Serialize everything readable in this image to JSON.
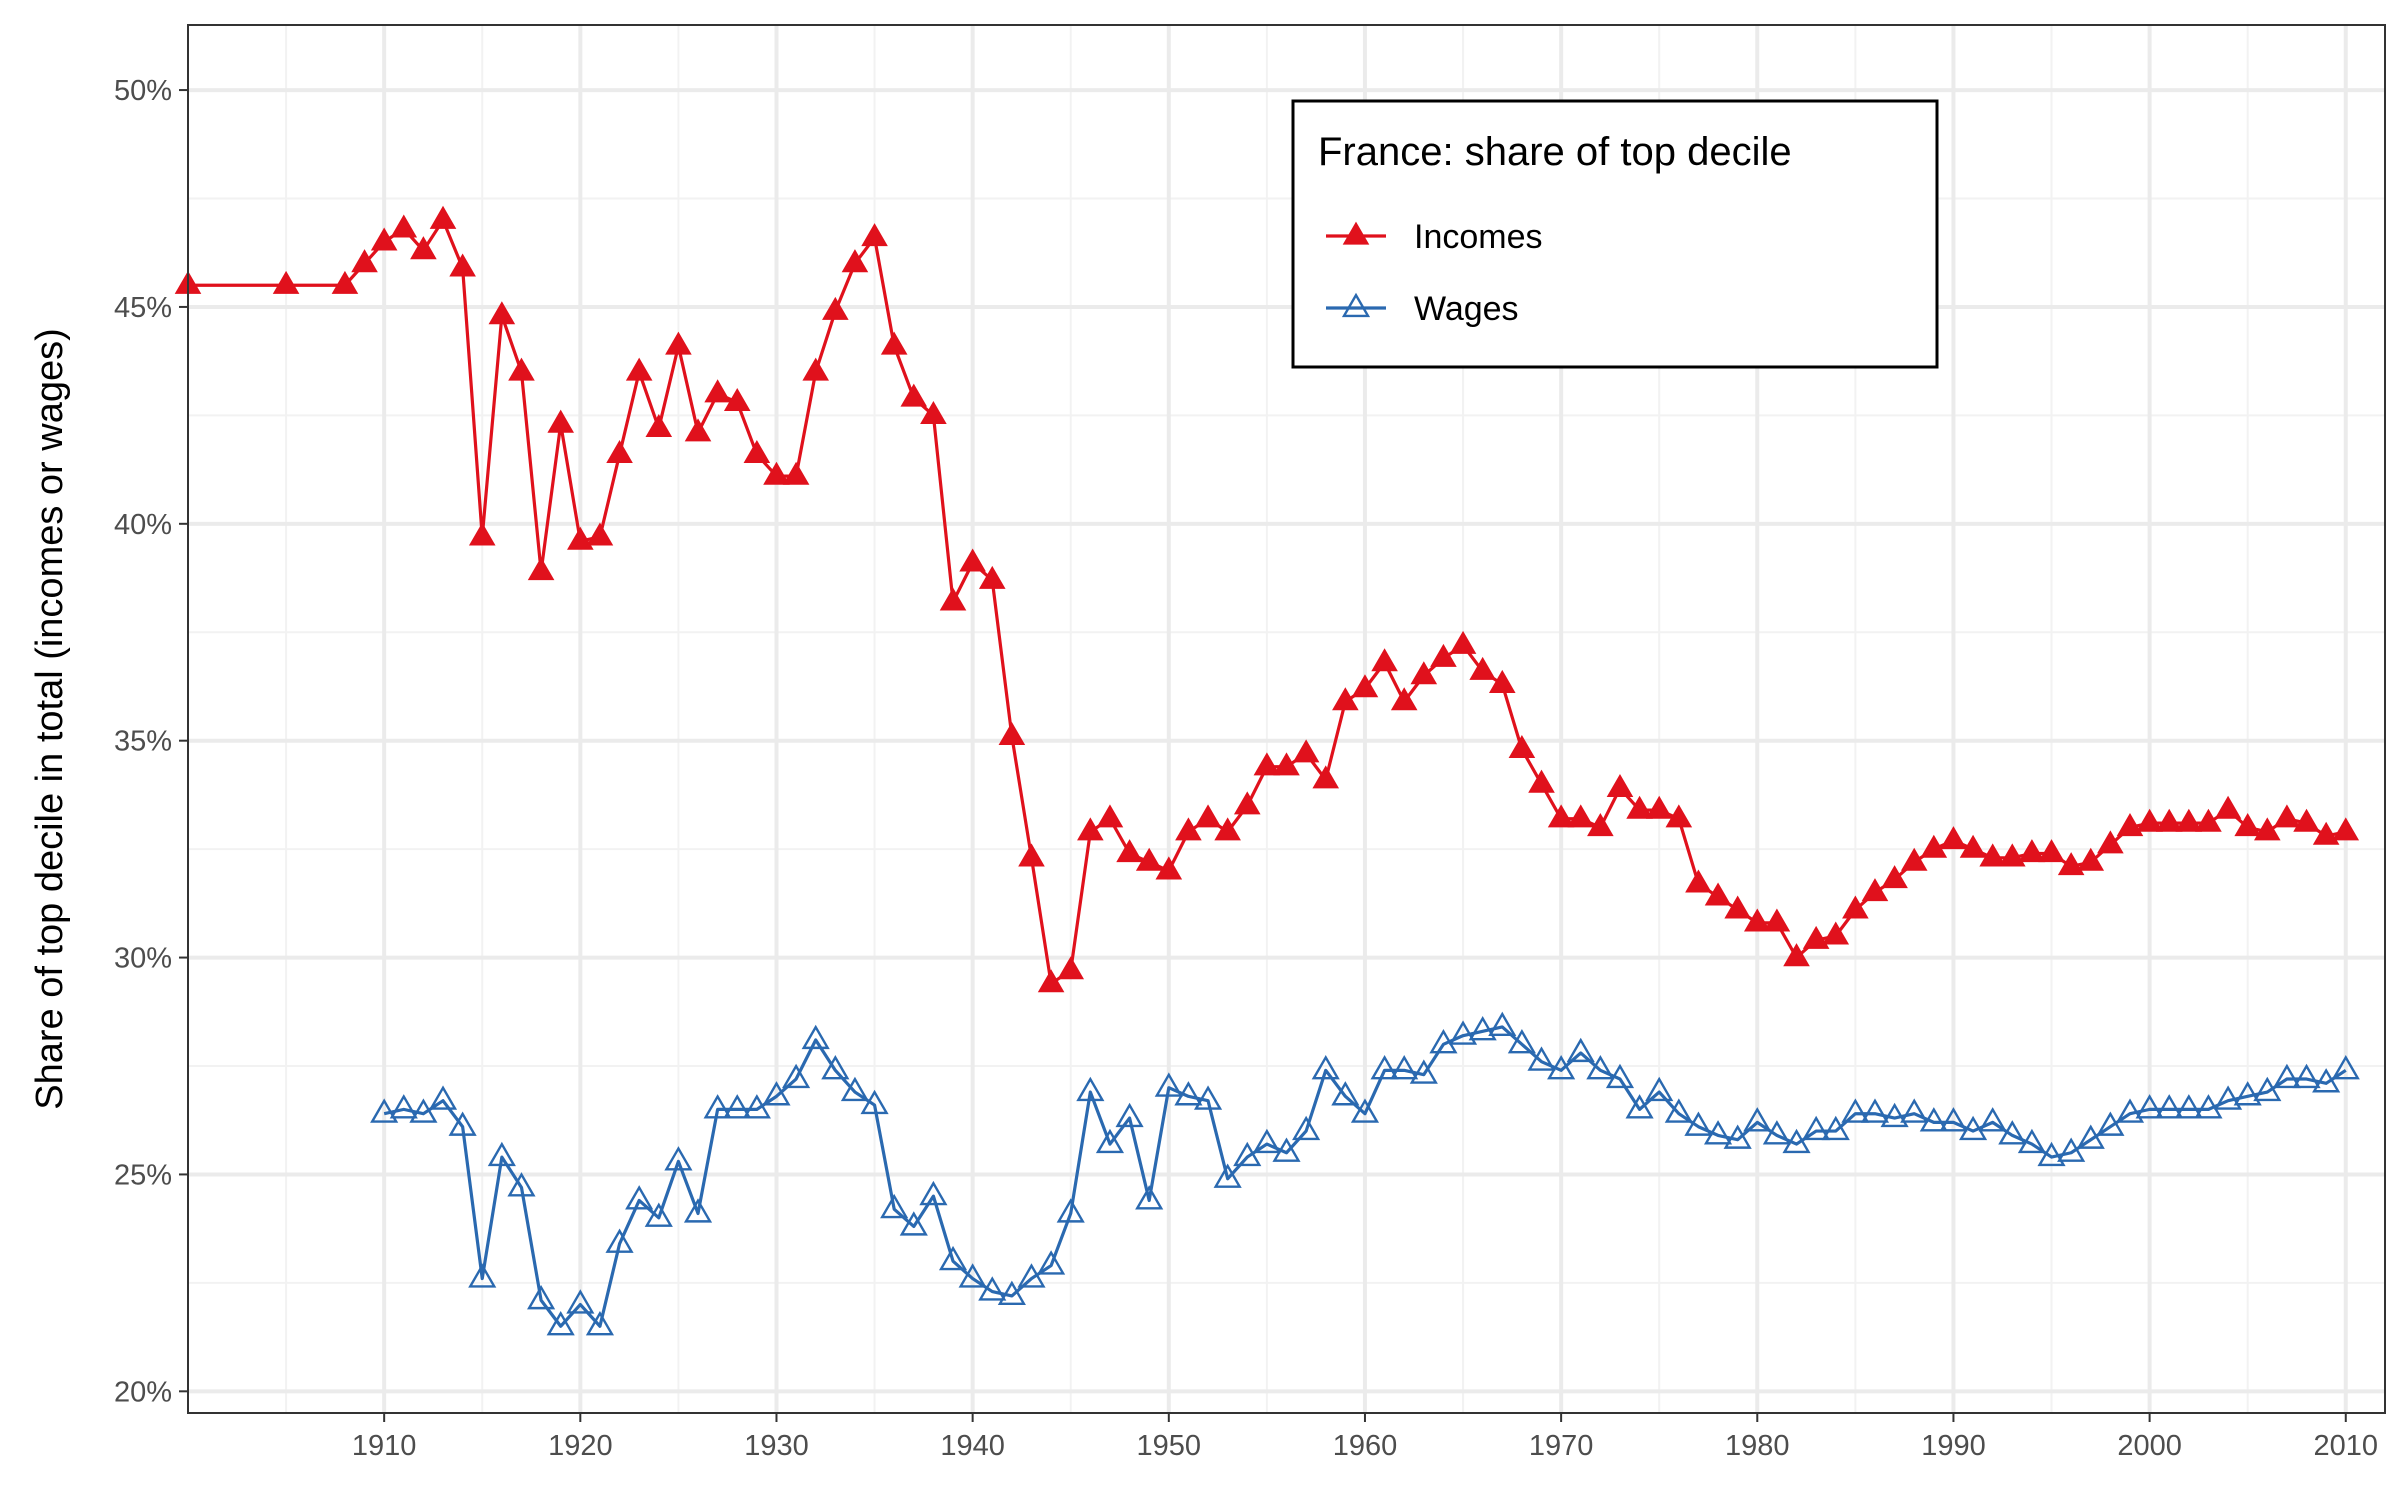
{
  "chart_data": {
    "type": "line",
    "ylabel": "Share of top decile in total (incomes or wages)",
    "xlim": [
      1900,
      2012
    ],
    "ylim": [
      0.195,
      0.515
    ],
    "x_ticks": [
      1910,
      1920,
      1930,
      1940,
      1950,
      1960,
      1970,
      1980,
      1990,
      2000,
      2010
    ],
    "y_ticks": [
      0.2,
      0.25,
      0.3,
      0.35,
      0.4,
      0.45,
      0.5
    ],
    "y_tick_labels": [
      "20%",
      "25%",
      "30%",
      "35%",
      "40%",
      "45%",
      "50%"
    ],
    "grid": true,
    "legend": {
      "title": "France: share of top decile",
      "position": "top-right"
    },
    "series": [
      {
        "name": "Incomes",
        "color": "#e0111c",
        "marker": "filled-triangle",
        "x": [
          1900,
          1905,
          1908,
          1909,
          1910,
          1911,
          1912,
          1913,
          1914,
          1915,
          1916,
          1917,
          1918,
          1919,
          1920,
          1921,
          1922,
          1923,
          1924,
          1925,
          1926,
          1927,
          1928,
          1929,
          1930,
          1931,
          1932,
          1933,
          1934,
          1935,
          1936,
          1937,
          1938,
          1939,
          1940,
          1941,
          1942,
          1943,
          1944,
          1945,
          1946,
          1947,
          1948,
          1949,
          1950,
          1951,
          1952,
          1953,
          1954,
          1955,
          1956,
          1957,
          1958,
          1959,
          1960,
          1961,
          1962,
          1963,
          1964,
          1965,
          1966,
          1967,
          1968,
          1969,
          1970,
          1971,
          1972,
          1973,
          1974,
          1975,
          1976,
          1977,
          1978,
          1979,
          1980,
          1981,
          1982,
          1983,
          1984,
          1985,
          1986,
          1987,
          1988,
          1989,
          1990,
          1991,
          1992,
          1993,
          1994,
          1995,
          1996,
          1997,
          1998,
          1999,
          2000,
          2001,
          2002,
          2003,
          2004,
          2005,
          2006,
          2007,
          2008,
          2009,
          2010
        ],
        "y": [
          0.455,
          0.455,
          0.455,
          0.46,
          0.465,
          0.468,
          0.463,
          0.47,
          0.459,
          0.397,
          0.448,
          0.435,
          0.389,
          0.423,
          0.396,
          0.397,
          0.416,
          0.435,
          0.422,
          0.441,
          0.421,
          0.43,
          0.428,
          0.416,
          0.411,
          0.411,
          0.435,
          0.449,
          0.46,
          0.466,
          0.441,
          0.429,
          0.425,
          0.382,
          0.391,
          0.387,
          0.351,
          0.323,
          0.294,
          0.297,
          0.329,
          0.332,
          0.324,
          0.322,
          0.32,
          0.329,
          0.332,
          0.329,
          0.335,
          0.344,
          0.344,
          0.347,
          0.341,
          0.359,
          0.362,
          0.368,
          0.359,
          0.365,
          0.369,
          0.372,
          0.366,
          0.363,
          0.348,
          0.34,
          0.332,
          0.332,
          0.33,
          0.339,
          0.334,
          0.334,
          0.332,
          0.317,
          0.314,
          0.311,
          0.308,
          0.308,
          0.3,
          0.304,
          0.305,
          0.311,
          0.315,
          0.318,
          0.322,
          0.325,
          0.327,
          0.325,
          0.323,
          0.323,
          0.324,
          0.324,
          0.321,
          0.322,
          0.326,
          0.33,
          0.331,
          0.331,
          0.331,
          0.331,
          0.334,
          0.33,
          0.329,
          0.332,
          0.331,
          0.328,
          0.329
        ]
      },
      {
        "name": "Wages",
        "color": "#2a69b0",
        "marker": "open-triangle",
        "x": [
          1910,
          1911,
          1912,
          1913,
          1914,
          1915,
          1916,
          1917,
          1918,
          1919,
          1920,
          1921,
          1922,
          1923,
          1924,
          1925,
          1926,
          1927,
          1928,
          1929,
          1930,
          1931,
          1932,
          1933,
          1934,
          1935,
          1936,
          1937,
          1938,
          1939,
          1940,
          1941,
          1942,
          1943,
          1944,
          1945,
          1946,
          1947,
          1948,
          1949,
          1950,
          1951,
          1952,
          1953,
          1954,
          1955,
          1956,
          1957,
          1958,
          1959,
          1960,
          1961,
          1962,
          1963,
          1964,
          1965,
          1966,
          1967,
          1968,
          1969,
          1970,
          1971,
          1972,
          1973,
          1974,
          1975,
          1976,
          1977,
          1978,
          1979,
          1980,
          1981,
          1982,
          1983,
          1984,
          1985,
          1986,
          1987,
          1988,
          1989,
          1990,
          1991,
          1992,
          1993,
          1994,
          1995,
          1996,
          1997,
          1998,
          1999,
          2000,
          2001,
          2002,
          2003,
          2004,
          2005,
          2006,
          2007,
          2008,
          2009,
          2010
        ],
        "y": [
          0.264,
          0.265,
          0.264,
          0.267,
          0.261,
          0.226,
          0.254,
          0.247,
          0.221,
          0.215,
          0.22,
          0.215,
          0.234,
          0.244,
          0.24,
          0.253,
          0.241,
          0.265,
          0.265,
          0.265,
          0.268,
          0.272,
          0.281,
          0.274,
          0.269,
          0.266,
          0.242,
          0.238,
          0.245,
          0.23,
          0.226,
          0.223,
          0.222,
          0.226,
          0.229,
          0.241,
          0.269,
          0.257,
          0.263,
          0.244,
          0.27,
          0.268,
          0.267,
          0.249,
          0.254,
          0.257,
          0.255,
          0.26,
          0.274,
          0.268,
          0.264,
          0.274,
          0.274,
          0.273,
          0.28,
          0.282,
          0.283,
          0.284,
          0.28,
          0.276,
          0.274,
          0.278,
          0.274,
          0.272,
          0.265,
          0.269,
          0.264,
          0.261,
          0.259,
          0.258,
          0.262,
          0.259,
          0.257,
          0.26,
          0.26,
          0.264,
          0.264,
          0.263,
          0.264,
          0.262,
          0.262,
          0.26,
          0.262,
          0.259,
          0.257,
          0.254,
          0.255,
          0.258,
          0.261,
          0.264,
          0.265,
          0.265,
          0.265,
          0.265,
          0.267,
          0.268,
          0.269,
          0.272,
          0.272,
          0.271,
          0.274
        ]
      }
    ]
  }
}
